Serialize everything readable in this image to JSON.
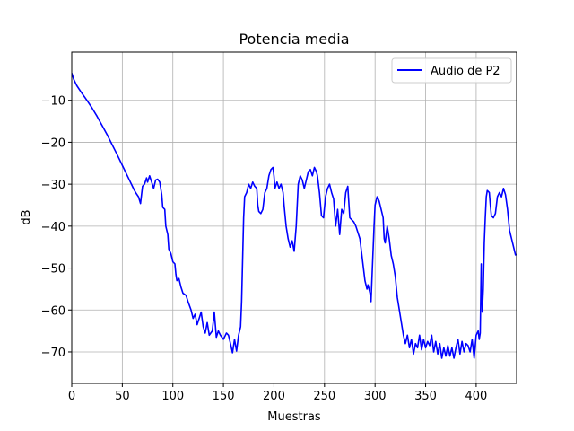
{
  "chart_data": {
    "type": "line",
    "title": "Potencia media",
    "xlabel": "Muestras",
    "ylabel": "dB",
    "xlim": [
      0,
      440
    ],
    "ylim": [
      -77.5,
      1.5
    ],
    "grid": true,
    "legend_position": "upper-right",
    "x_ticks": [
      0,
      50,
      100,
      150,
      200,
      250,
      300,
      350,
      400
    ],
    "y_ticks": [
      -70,
      -60,
      -50,
      -40,
      -30,
      -20,
      -10
    ],
    "x_tick_labels": [
      "0",
      "50",
      "100",
      "150",
      "200",
      "250",
      "300",
      "350",
      "400"
    ],
    "y_tick_labels": [
      "−70",
      "−60",
      "−50",
      "−40",
      "−30",
      "−20",
      "−10"
    ],
    "series": [
      {
        "name": "Audio de P2",
        "color": "#0000ff",
        "points": [
          [
            0,
            -3.5
          ],
          [
            2,
            -5
          ],
          [
            5,
            -6.5
          ],
          [
            10,
            -8.3
          ],
          [
            15,
            -10
          ],
          [
            20,
            -11.8
          ],
          [
            25,
            -13.8
          ],
          [
            30,
            -16
          ],
          [
            35,
            -18.2
          ],
          [
            40,
            -20.6
          ],
          [
            45,
            -23
          ],
          [
            50,
            -25.5
          ],
          [
            55,
            -28
          ],
          [
            58,
            -29.5
          ],
          [
            60,
            -30.5
          ],
          [
            62,
            -31.5
          ],
          [
            64,
            -32.3
          ],
          [
            66,
            -33
          ],
          [
            68,
            -34.6
          ],
          [
            70,
            -30.5
          ],
          [
            72,
            -30
          ],
          [
            74,
            -28.5
          ],
          [
            75,
            -29.5
          ],
          [
            77,
            -28
          ],
          [
            79,
            -29.5
          ],
          [
            81,
            -31
          ],
          [
            83,
            -29
          ],
          [
            85,
            -28.8
          ],
          [
            87,
            -29.5
          ],
          [
            89,
            -32.5
          ],
          [
            90,
            -35.5
          ],
          [
            92,
            -36
          ],
          [
            93,
            -40
          ],
          [
            95,
            -42
          ],
          [
            96,
            -45.5
          ],
          [
            98,
            -46.5
          ],
          [
            100,
            -48.5
          ],
          [
            102,
            -49
          ],
          [
            103,
            -51.5
          ],
          [
            104,
            -53
          ],
          [
            106,
            -52.5
          ],
          [
            108,
            -54.5
          ],
          [
            110,
            -56
          ],
          [
            113,
            -56.5
          ],
          [
            115,
            -58
          ],
          [
            118,
            -60
          ],
          [
            120,
            -62
          ],
          [
            122,
            -61
          ],
          [
            124,
            -63.5
          ],
          [
            126,
            -62
          ],
          [
            128,
            -60.5
          ],
          [
            130,
            -64
          ],
          [
            132,
            -65.5
          ],
          [
            134,
            -63
          ],
          [
            136,
            -66
          ],
          [
            139,
            -65
          ],
          [
            141,
            -60.5
          ],
          [
            143,
            -66.5
          ],
          [
            145,
            -65
          ],
          [
            147,
            -66
          ],
          [
            150,
            -67
          ],
          [
            153,
            -65.5
          ],
          [
            155,
            -66
          ],
          [
            157,
            -68
          ],
          [
            159,
            -70.2
          ],
          [
            161,
            -67
          ],
          [
            163,
            -69.8
          ],
          [
            165,
            -66
          ],
          [
            167,
            -64
          ],
          [
            168,
            -58
          ],
          [
            169,
            -48
          ],
          [
            170,
            -38
          ],
          [
            171,
            -33
          ],
          [
            173,
            -32
          ],
          [
            175,
            -30
          ],
          [
            177,
            -31
          ],
          [
            179,
            -29.5
          ],
          [
            181,
            -30.5
          ],
          [
            183,
            -31
          ],
          [
            184,
            -35
          ],
          [
            185,
            -36.5
          ],
          [
            187,
            -37
          ],
          [
            189,
            -36
          ],
          [
            191,
            -32
          ],
          [
            193,
            -31
          ],
          [
            195,
            -28
          ],
          [
            197,
            -26.5
          ],
          [
            199,
            -26
          ],
          [
            200,
            -28
          ],
          [
            201,
            -31
          ],
          [
            203,
            -29.5
          ],
          [
            205,
            -31
          ],
          [
            207,
            -30
          ],
          [
            209,
            -32
          ],
          [
            210,
            -35
          ],
          [
            212,
            -40
          ],
          [
            214,
            -43
          ],
          [
            216,
            -45
          ],
          [
            218,
            -43.5
          ],
          [
            220,
            -46
          ],
          [
            222,
            -40
          ],
          [
            224,
            -30
          ],
          [
            226,
            -28
          ],
          [
            228,
            -29
          ],
          [
            230,
            -31
          ],
          [
            232,
            -29
          ],
          [
            234,
            -27
          ],
          [
            236,
            -26.5
          ],
          [
            238,
            -28
          ],
          [
            240,
            -26
          ],
          [
            242,
            -27
          ],
          [
            243,
            -28
          ],
          [
            245,
            -32
          ],
          [
            247,
            -37.5
          ],
          [
            249,
            -38
          ],
          [
            251,
            -33
          ],
          [
            253,
            -31
          ],
          [
            255,
            -30
          ],
          [
            257,
            -32
          ],
          [
            259,
            -33.5
          ],
          [
            261,
            -40
          ],
          [
            263,
            -36
          ],
          [
            265,
            -42
          ],
          [
            267,
            -36
          ],
          [
            269,
            -37
          ],
          [
            271,
            -32
          ],
          [
            273,
            -30.5
          ],
          [
            275,
            -38
          ],
          [
            277,
            -38.5
          ],
          [
            279,
            -39
          ],
          [
            281,
            -40
          ],
          [
            283,
            -41.5
          ],
          [
            285,
            -43
          ],
          [
            287,
            -47
          ],
          [
            289,
            -51
          ],
          [
            290,
            -53
          ],
          [
            292,
            -55
          ],
          [
            293,
            -54
          ],
          [
            295,
            -56
          ],
          [
            296,
            -58
          ],
          [
            297,
            -52
          ],
          [
            299,
            -40
          ],
          [
            300,
            -35
          ],
          [
            302,
            -33
          ],
          [
            304,
            -34
          ],
          [
            306,
            -36
          ],
          [
            308,
            -38
          ],
          [
            309,
            -43
          ],
          [
            310,
            -44
          ],
          [
            312,
            -40
          ],
          [
            314,
            -43
          ],
          [
            316,
            -47
          ],
          [
            318,
            -49
          ],
          [
            320,
            -52
          ],
          [
            322,
            -57
          ],
          [
            324,
            -60
          ],
          [
            326,
            -63
          ],
          [
            328,
            -66
          ],
          [
            330,
            -68
          ],
          [
            332,
            -66
          ],
          [
            334,
            -69
          ],
          [
            336,
            -67
          ],
          [
            338,
            -70.5
          ],
          [
            340,
            -68
          ],
          [
            342,
            -69
          ],
          [
            344,
            -66
          ],
          [
            346,
            -69.5
          ],
          [
            348,
            -67
          ],
          [
            350,
            -69
          ],
          [
            352,
            -67.5
          ],
          [
            354,
            -68.5
          ],
          [
            356,
            -66
          ],
          [
            358,
            -70
          ],
          [
            360,
            -67.5
          ],
          [
            362,
            -70.5
          ],
          [
            364,
            -68
          ],
          [
            366,
            -71.5
          ],
          [
            368,
            -69
          ],
          [
            370,
            -71
          ],
          [
            372,
            -68.5
          ],
          [
            374,
            -71
          ],
          [
            376,
            -69
          ],
          [
            378,
            -71.5
          ],
          [
            380,
            -69
          ],
          [
            382,
            -67
          ],
          [
            384,
            -70.5
          ],
          [
            386,
            -67.5
          ],
          [
            388,
            -70
          ],
          [
            390,
            -68
          ],
          [
            392,
            -68.5
          ],
          [
            394,
            -70
          ],
          [
            396,
            -67
          ],
          [
            398,
            -71.5
          ],
          [
            400,
            -66
          ],
          [
            402,
            -65
          ],
          [
            403,
            -67
          ],
          [
            404,
            -65.5
          ],
          [
            405,
            -49
          ],
          [
            406,
            -60.5
          ],
          [
            407,
            -55
          ],
          [
            408,
            -44
          ],
          [
            409,
            -38
          ],
          [
            410,
            -33
          ],
          [
            411,
            -31.5
          ],
          [
            413,
            -32
          ],
          [
            414,
            -35
          ],
          [
            415,
            -37.5
          ],
          [
            417,
            -38
          ],
          [
            419,
            -37
          ],
          [
            421,
            -33
          ],
          [
            423,
            -32
          ],
          [
            425,
            -33
          ],
          [
            427,
            -31
          ],
          [
            429,
            -32.5
          ],
          [
            431,
            -36
          ],
          [
            433,
            -41
          ],
          [
            435,
            -43
          ],
          [
            437,
            -45
          ],
          [
            439,
            -47
          ]
        ]
      }
    ]
  }
}
